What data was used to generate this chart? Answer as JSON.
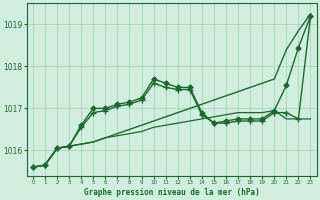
{
  "title": "Graphe pression niveau de la mer (hPa)",
  "background_color": "#d0ede0",
  "grid_color": "#a8d4bc",
  "line_color": "#1a6b2a",
  "xlim": [
    -0.5,
    23.5
  ],
  "ylim": [
    1015.4,
    1019.5
  ],
  "yticks": [
    1016,
    1017,
    1018,
    1019
  ],
  "xticks": [
    0,
    1,
    2,
    3,
    4,
    5,
    6,
    7,
    8,
    9,
    10,
    11,
    12,
    13,
    14,
    15,
    16,
    17,
    18,
    19,
    20,
    21,
    22,
    23
  ],
  "series": [
    {
      "x": [
        0,
        1,
        2,
        3,
        4,
        5,
        6,
        7,
        8,
        9,
        10,
        11,
        12,
        13,
        14,
        15,
        16,
        17,
        18,
        19,
        20,
        21,
        22,
        23
      ],
      "y": [
        1015.6,
        1015.65,
        1016.05,
        1016.1,
        1016.15,
        1016.2,
        1016.3,
        1016.4,
        1016.5,
        1016.6,
        1016.7,
        1016.8,
        1016.9,
        1017.0,
        1017.1,
        1017.2,
        1017.3,
        1017.4,
        1017.5,
        1017.6,
        1017.7,
        1018.4,
        1018.85,
        1019.25
      ],
      "marker": null,
      "markersize": 0,
      "linewidth": 1.0
    },
    {
      "x": [
        0,
        1,
        2,
        3,
        4,
        5,
        6,
        7,
        8,
        9,
        10,
        11,
        12,
        13,
        14,
        15,
        16,
        17,
        18,
        19,
        20,
        21,
        22,
        23
      ],
      "y": [
        1015.6,
        1015.65,
        1016.05,
        1016.1,
        1016.6,
        1017.0,
        1017.0,
        1017.1,
        1017.15,
        1017.25,
        1017.7,
        1017.6,
        1017.5,
        1017.5,
        1016.9,
        1016.65,
        1016.7,
        1016.75,
        1016.75,
        1016.75,
        1016.95,
        1017.55,
        1018.45,
        1019.2
      ],
      "marker": "D",
      "markersize": 2.5,
      "linewidth": 1.0
    },
    {
      "x": [
        0,
        1,
        2,
        3,
        4,
        5,
        6,
        7,
        8,
        9,
        10,
        11,
        12,
        13,
        14,
        15,
        16,
        17,
        18,
        19,
        20,
        21,
        22,
        23
      ],
      "y": [
        1015.6,
        1015.65,
        1016.05,
        1016.1,
        1016.55,
        1016.9,
        1016.95,
        1017.05,
        1017.1,
        1017.2,
        1017.6,
        1017.5,
        1017.45,
        1017.45,
        1016.85,
        1016.65,
        1016.65,
        1016.7,
        1016.7,
        1016.7,
        1016.9,
        1016.9,
        1016.75,
        1019.2
      ],
      "marker": "+",
      "markersize": 4,
      "linewidth": 1.0
    },
    {
      "x": [
        0,
        1,
        2,
        3,
        4,
        5,
        6,
        7,
        8,
        9,
        10,
        11,
        12,
        13,
        14,
        15,
        16,
        17,
        18,
        19,
        20,
        21,
        22,
        23
      ],
      "y": [
        1015.6,
        1015.65,
        1016.05,
        1016.1,
        1016.15,
        1016.2,
        1016.3,
        1016.35,
        1016.4,
        1016.45,
        1016.55,
        1016.6,
        1016.65,
        1016.7,
        1016.75,
        1016.8,
        1016.85,
        1016.9,
        1016.9,
        1016.9,
        1016.95,
        1016.75,
        1016.75,
        1016.75
      ],
      "marker": null,
      "markersize": 0,
      "linewidth": 0.9
    }
  ]
}
